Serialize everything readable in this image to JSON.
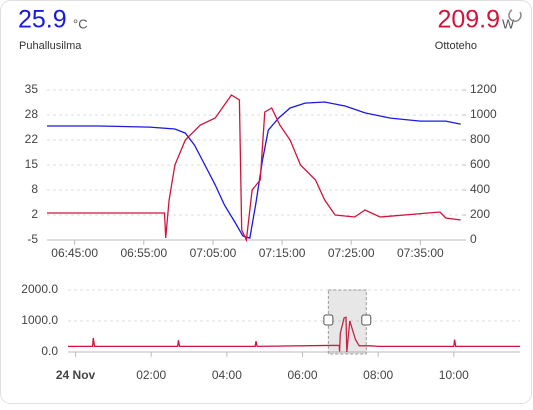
{
  "header": {
    "left": {
      "value": "25.9",
      "unit": "°C",
      "label": "Puhallusilma"
    },
    "right": {
      "value": "209.9",
      "unit": "W",
      "label": "Ottoteho"
    }
  },
  "chart_data": [
    {
      "type": "line",
      "xlim": [
        "06:41:00",
        "07:41:10"
      ],
      "xticks": [
        "06:45:00",
        "06:55:00",
        "07:05:00",
        "07:15:00",
        "07:25:00",
        "07:35:00"
      ],
      "ylim": [
        -5,
        35
      ],
      "yticks": [
        -5,
        {
          "value": 1.667,
          "label": "2"
        },
        {
          "value": 8.333,
          "label": "8"
        },
        15,
        {
          "value": 21.667,
          "label": "22"
        },
        {
          "value": 28.333,
          "label": "28"
        },
        35
      ],
      "y2lim": [
        0,
        1200
      ],
      "y2ticks": [
        0,
        200,
        400,
        600,
        800,
        1000,
        1200
      ],
      "grid": true,
      "series": [
        {
          "name": "Puhallusilma",
          "color": "#1a1ae0",
          "axis": "y",
          "x": [
            "06:41:00",
            "06:48:40",
            "06:55:50",
            "06:59:30",
            "07:01:00",
            "07:02:20",
            "07:03:50",
            "07:05:20",
            "07:06:40",
            "07:08:10",
            "07:09:20",
            "07:10:20",
            "07:11:10",
            "07:12:10",
            "07:13:00",
            "07:14:30",
            "07:16:10",
            "07:18:20",
            "07:21:10",
            "07:24:10",
            "07:27:00",
            "07:30:40",
            "07:35:00",
            "07:38:40",
            "07:40:50"
          ],
          "values": [
            25.4,
            25.4,
            25.1,
            24.6,
            23.5,
            20.3,
            15.0,
            9.7,
            4.3,
            -0.2,
            -3.9,
            -4.5,
            4.3,
            16.3,
            24.3,
            27.5,
            30.2,
            31.5,
            31.8,
            30.7,
            28.9,
            27.5,
            26.7,
            26.7,
            25.9
          ]
        },
        {
          "name": "Ottoteho",
          "color": "#d0153c",
          "axis": "y2",
          "x": [
            "06:41:00",
            "06:58:00",
            "06:58:10",
            "06:58:40",
            "06:59:30",
            "07:01:00",
            "07:03:10",
            "07:05:20",
            "07:07:10",
            "07:07:40",
            "07:08:50",
            "07:09:10",
            "07:09:50",
            "07:10:40",
            "07:11:50",
            "07:12:30",
            "07:13:30",
            "07:14:40",
            "07:16:10",
            "07:17:40",
            "07:19:50",
            "07:21:10",
            "07:22:40",
            "07:25:30",
            "07:27:00",
            "07:29:10",
            "07:37:50",
            "07:38:40",
            "07:40:50"
          ],
          "values": [
            216,
            216,
            16,
            320,
            600,
            800,
            920,
            976,
            1120,
            1160,
            1120,
            80,
            0,
            400,
            480,
            1024,
            1056,
            920,
            800,
            600,
            480,
            320,
            200,
            184,
            240,
            184,
            224,
            176,
            160
          ]
        }
      ]
    },
    {
      "type": "line",
      "xlim": [
        -0.2,
        11.75
      ],
      "xticks": [
        {
          "value": 0,
          "label": "24 Nov"
        },
        {
          "value": 2,
          "label": "02:00"
        },
        {
          "value": 4,
          "label": "04:00"
        },
        {
          "value": 6,
          "label": "06:00"
        },
        {
          "value": 8,
          "label": "08:00"
        },
        {
          "value": 10,
          "label": "10:00"
        }
      ],
      "ylim": [
        0,
        2000
      ],
      "yticks": [
        {
          "value": 0,
          "label": "0.0"
        },
        {
          "value": 1000,
          "label": "1000.0"
        },
        {
          "value": 2000,
          "label": "2000.0"
        }
      ],
      "grid": true,
      "series": [
        {
          "name": "Ottoteho",
          "color": "#d0153c",
          "axis": "y",
          "x": [
            -0.2,
            0.45,
            0.47,
            0.5,
            2.7,
            2.72,
            2.75,
            4.75,
            4.77,
            4.8,
            6.97,
            6.98,
            7.0,
            7.1,
            7.15,
            7.17,
            7.25,
            7.3,
            7.4,
            7.5,
            7.8,
            8.0,
            10.0,
            10.02,
            10.05,
            11.75
          ],
          "values": [
            180,
            180,
            450,
            180,
            180,
            380,
            180,
            180,
            350,
            180,
            216,
            16,
            600,
            1100,
            1120,
            0,
            1000,
            800,
            400,
            200,
            200,
            180,
            180,
            400,
            180,
            180
          ]
        }
      ]
    }
  ]
}
